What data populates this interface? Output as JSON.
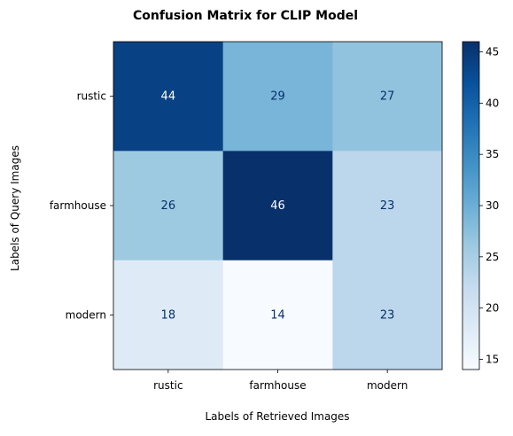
{
  "chart_data": {
    "type": "heatmap",
    "title": "Confusion Matrix for CLIP Model",
    "xlabel": "Labels of Retrieved Images",
    "ylabel": "Labels of Query Images",
    "x_categories": [
      "rustic",
      "farmhouse",
      "modern"
    ],
    "y_categories": [
      "rustic",
      "farmhouse",
      "modern"
    ],
    "values": [
      [
        44,
        29,
        27
      ],
      [
        26,
        46,
        23
      ],
      [
        18,
        14,
        23
      ]
    ],
    "colorbar": {
      "min": 14,
      "max": 46,
      "ticks": [
        15,
        20,
        25,
        30,
        35,
        40,
        45
      ],
      "colormap": "Blues"
    },
    "grid": false
  }
}
